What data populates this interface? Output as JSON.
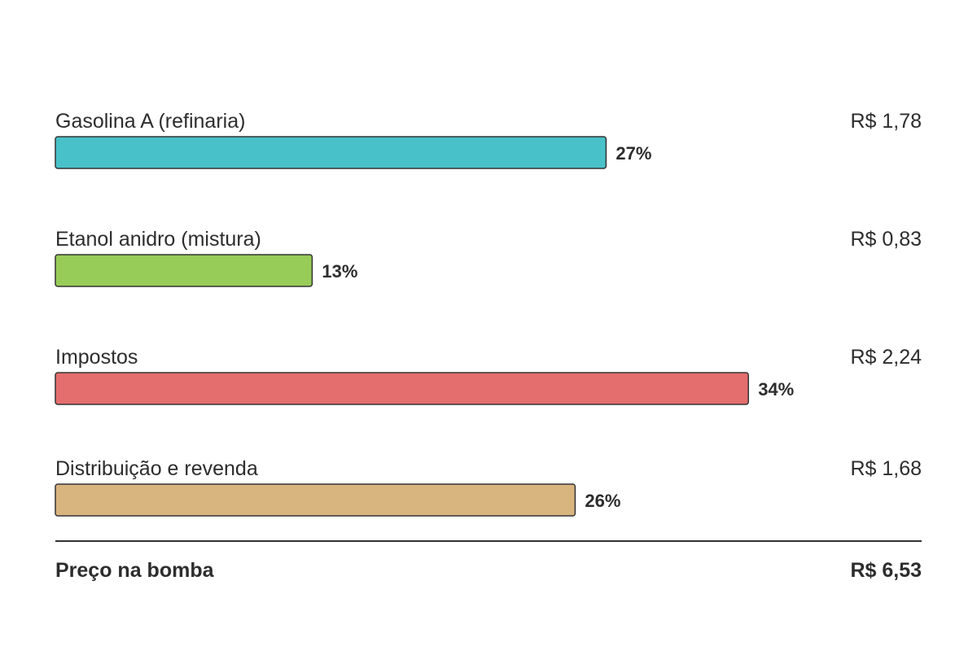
{
  "chart_data": {
    "type": "bar",
    "categories": [
      "Gasolina A (refinaria)",
      "Etanol anidro (mistura)",
      "Impostos",
      "Distribuição e revenda"
    ],
    "values": [
      1.78,
      0.83,
      2.24,
      1.68
    ],
    "value_labels": [
      "R$ 1,78",
      "R$ 0,83",
      "R$ 2,24",
      "R$ 1,68"
    ],
    "shares": [
      27,
      13,
      34,
      26
    ],
    "share_labels": [
      "27%",
      "13%",
      "34%",
      "26%"
    ],
    "colors": [
      "#48c1c9",
      "#98cc58",
      "#e46e6e",
      "#d8b47f"
    ],
    "total_label": "Preço na bomba",
    "total": 6.53,
    "total_value_label": "R$ 6,53"
  }
}
